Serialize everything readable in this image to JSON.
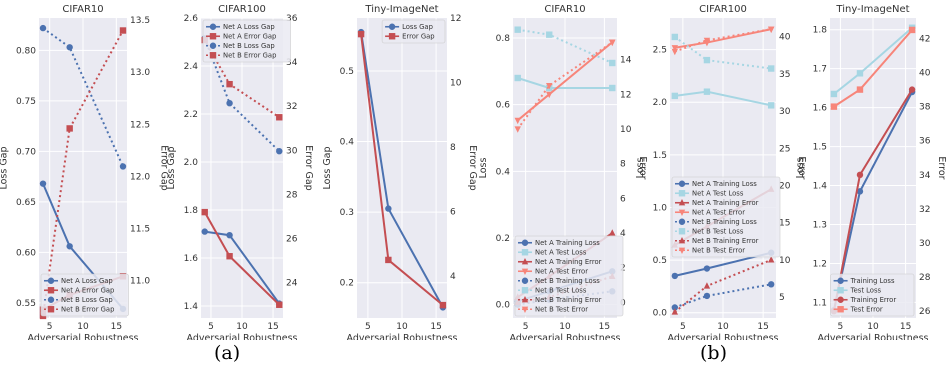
{
  "captions": {
    "a": "(a)",
    "b": "(b)"
  },
  "colors": {
    "blue": "#4c72b0",
    "red": "#c44e52",
    "lightblue": "#a6d6e3",
    "salmon": "#f7857a",
    "grid": "#ffffff",
    "panel_bg": "#eaeaf2",
    "text": "#333333"
  },
  "chart_data": [
    {
      "type": "line",
      "title": "CIFAR10",
      "xlabel": "Adversarial Robustness",
      "ylabel": "Loss Gap",
      "y2label": "Error Gap",
      "xlim": [
        3.4,
        16.6
      ],
      "ylim": [
        0.535,
        0.832
      ],
      "y2lim": [
        10.64,
        13.52
      ],
      "xticks": [
        5,
        10,
        15
      ],
      "yticks": [
        0.55,
        0.6,
        0.65,
        0.7,
        0.75,
        0.8
      ],
      "y2ticks": [
        11.0,
        11.5,
        12.0,
        12.5,
        13.0,
        13.5
      ],
      "x": [
        4,
        8,
        16
      ],
      "series": [
        {
          "name": "Net A Loss Gap",
          "axis": "left",
          "values": [
            0.668,
            0.606,
            0.544
          ],
          "color": "blue",
          "marker": "circle",
          "dash": false
        },
        {
          "name": "Net A Error Gap",
          "axis": "right",
          "values": [
            10.72,
            10.86,
            11.04
          ],
          "color": "red",
          "marker": "square",
          "dash": false
        },
        {
          "name": "Net B Loss Gap",
          "axis": "left",
          "values": [
            0.822,
            0.803,
            0.685
          ],
          "color": "blue",
          "marker": "circle",
          "dash": true
        },
        {
          "name": "Net B Error Gap",
          "axis": "right",
          "values": [
            10.66,
            12.46,
            13.4
          ],
          "color": "red",
          "marker": "square",
          "dash": true
        }
      ],
      "legend": "lower-left"
    },
    {
      "type": "line",
      "title": "CIFAR100",
      "xlabel": "Adversarial Robustness",
      "ylabel": "Loss Gap",
      "y2label": "Error Gap",
      "xlim": [
        3.4,
        16.6
      ],
      "ylim": [
        1.35,
        2.6
      ],
      "y2lim": [
        22.4,
        36.0
      ],
      "xticks": [
        5,
        10,
        15
      ],
      "yticks": [
        1.4,
        1.6,
        1.8,
        2.0,
        2.2,
        2.4,
        2.6
      ],
      "y2ticks": [
        24,
        26,
        28,
        30,
        32,
        34,
        36
      ],
      "x": [
        4,
        8,
        16
      ],
      "series": [
        {
          "name": "Net A Loss Gap",
          "axis": "left",
          "values": [
            1.71,
            1.695,
            1.41
          ],
          "color": "blue",
          "marker": "circle",
          "dash": false
        },
        {
          "name": "Net A Error Gap",
          "axis": "right",
          "values": [
            27.2,
            25.2,
            23.0
          ],
          "color": "red",
          "marker": "square",
          "dash": false
        },
        {
          "name": "Net B Loss Gap",
          "axis": "left",
          "values": [
            2.515,
            2.245,
            2.045
          ],
          "color": "blue",
          "marker": "circle",
          "dash": true
        },
        {
          "name": "Net B Error Gap",
          "axis": "right",
          "values": [
            35.0,
            33.0,
            31.5
          ],
          "color": "red",
          "marker": "square",
          "dash": true
        }
      ],
      "legend": "top-left"
    },
    {
      "type": "line",
      "title": "Tiny-ImageNet",
      "xlabel": "Adversarial Robustness",
      "ylabel": "Loss Gap",
      "y2label": "Error Gap",
      "xlim": [
        3.4,
        16.6
      ],
      "ylim": [
        0.15,
        0.575
      ],
      "y2lim": [
        2.7,
        12.0
      ],
      "xticks": [
        5,
        10,
        15
      ],
      "yticks": [
        0.2,
        0.3,
        0.4,
        0.5
      ],
      "y2ticks": [
        4,
        6,
        8,
        10,
        12
      ],
      "x": [
        4,
        8,
        16
      ],
      "series": [
        {
          "name": "Loss Gap",
          "axis": "left",
          "values": [
            0.555,
            0.305,
            0.165
          ],
          "color": "blue",
          "marker": "circle",
          "dash": false
        },
        {
          "name": "Error Gap",
          "axis": "right",
          "values": [
            11.5,
            4.5,
            3.1
          ],
          "color": "red",
          "marker": "square",
          "dash": false
        }
      ],
      "legend": "top-right"
    },
    {
      "type": "line",
      "title": "CIFAR10",
      "xlabel": "Adversarial Robustness",
      "ylabel": "Loss",
      "y2label": "Error",
      "xlim": [
        3.4,
        16.6
      ],
      "ylim": [
        -0.04,
        0.86
      ],
      "y2lim": [
        -0.9,
        16.4
      ],
      "xticks": [
        5,
        10,
        15
      ],
      "yticks": [
        0.0,
        0.2,
        0.4,
        0.6,
        0.8
      ],
      "y2ticks": [
        0,
        2,
        4,
        6,
        8,
        10,
        12,
        14
      ],
      "x": [
        4,
        8,
        16
      ],
      "series": [
        {
          "name": "Net A Training Loss",
          "axis": "left",
          "values": [
            0.01,
            0.04,
            0.1
          ],
          "color": "blue",
          "marker": "circle",
          "dash": false
        },
        {
          "name": "Net A Test Loss",
          "axis": "left",
          "values": [
            0.68,
            0.65,
            0.65
          ],
          "color": "lightblue",
          "marker": "square",
          "dash": false
        },
        {
          "name": "Net A Training Error",
          "axis": "right",
          "values": [
            0.3,
            1.5,
            4.0
          ],
          "color": "red",
          "marker": "triangle-up",
          "dash": false
        },
        {
          "name": "Net A Test Error",
          "axis": "right",
          "values": [
            10.5,
            12.0,
            15.0
          ],
          "color": "salmon",
          "marker": "triangle-down",
          "dash": false
        },
        {
          "name": "Net B Training Loss",
          "axis": "left",
          "values": [
            0.0,
            0.015,
            0.04
          ],
          "color": "blue",
          "marker": "circle",
          "dash": true
        },
        {
          "name": "Net B Test Loss",
          "axis": "left",
          "values": [
            0.825,
            0.81,
            0.725
          ],
          "color": "lightblue",
          "marker": "square",
          "dash": true
        },
        {
          "name": "Net B Training Error",
          "axis": "right",
          "values": [
            0.0,
            0.3,
            1.5
          ],
          "color": "red",
          "marker": "triangle-up",
          "dash": true
        },
        {
          "name": "Net B Test Error",
          "axis": "right",
          "values": [
            10.0,
            12.5,
            15.0
          ],
          "color": "salmon",
          "marker": "triangle-down",
          "dash": true
        }
      ],
      "legend": "lower-left"
    },
    {
      "type": "line",
      "title": "CIFAR100",
      "xlabel": "Adversarial Robustness",
      "ylabel": "Loss",
      "y2label": "Error",
      "xlim": [
        3.4,
        16.6
      ],
      "ylim": [
        -0.05,
        2.8
      ],
      "y2lim": [
        2.2,
        42.5
      ],
      "xticks": [
        5,
        10,
        15
      ],
      "yticks": [
        0.0,
        0.5,
        1.0,
        1.5,
        2.0,
        2.5
      ],
      "y2ticks": [
        5,
        10,
        15,
        20,
        25,
        30,
        35,
        40
      ],
      "x": [
        4,
        8,
        16
      ],
      "series": [
        {
          "name": "Net A Training Loss",
          "axis": "left",
          "values": [
            0.35,
            0.42,
            0.57
          ],
          "color": "blue",
          "marker": "circle",
          "dash": false
        },
        {
          "name": "Net A Test Loss",
          "axis": "left",
          "values": [
            2.06,
            2.1,
            1.97
          ],
          "color": "lightblue",
          "marker": "square",
          "dash": false
        },
        {
          "name": "Net A Training Error",
          "axis": "right",
          "values": [
            12.0,
            14.5,
            19.5
          ],
          "color": "red",
          "marker": "triangle-up",
          "dash": false
        },
        {
          "name": "Net A Test Error",
          "axis": "right",
          "values": [
            38.5,
            39.2,
            41.0
          ],
          "color": "salmon",
          "marker": "triangle-down",
          "dash": false
        },
        {
          "name": "Net B Training Loss",
          "axis": "left",
          "values": [
            0.05,
            0.16,
            0.27
          ],
          "color": "blue",
          "marker": "circle",
          "dash": true
        },
        {
          "name": "Net B Test Loss",
          "axis": "left",
          "values": [
            2.62,
            2.4,
            2.32
          ],
          "color": "lightblue",
          "marker": "square",
          "dash": true
        },
        {
          "name": "Net B Training Error",
          "axis": "right",
          "values": [
            3.0,
            6.5,
            10.0
          ],
          "color": "red",
          "marker": "triangle-up",
          "dash": true
        },
        {
          "name": "Net B Test Error",
          "axis": "right",
          "values": [
            38.0,
            39.5,
            41.0
          ],
          "color": "salmon",
          "marker": "triangle-down",
          "dash": true
        }
      ],
      "legend": "center-left"
    },
    {
      "type": "line",
      "title": "Tiny-ImageNet",
      "xlabel": "Adversarial Robustness",
      "ylabel": "Loss",
      "y2label": "Error",
      "xlim": [
        3.4,
        16.6
      ],
      "ylim": [
        1.06,
        1.83
      ],
      "y2lim": [
        25.6,
        43.2
      ],
      "xticks": [
        5,
        10,
        15
      ],
      "yticks": [
        1.1,
        1.2,
        1.3,
        1.4,
        1.5,
        1.6,
        1.7,
        1.8
      ],
      "y2ticks": [
        26,
        28,
        30,
        32,
        34,
        36,
        38,
        40,
        42
      ],
      "x": [
        4,
        8,
        16
      ],
      "series": [
        {
          "name": "Training Loss",
          "axis": "left",
          "values": [
            1.08,
            1.385,
            1.64
          ],
          "color": "blue",
          "marker": "circle",
          "dash": false
        },
        {
          "name": "Test Loss",
          "axis": "left",
          "values": [
            1.635,
            1.688,
            1.805
          ],
          "color": "lightblue",
          "marker": "square",
          "dash": false
        },
        {
          "name": "Training Error",
          "axis": "right",
          "values": [
            26.0,
            34.0,
            39.0
          ],
          "color": "red",
          "marker": "circle",
          "dash": false
        },
        {
          "name": "Test Error",
          "axis": "right",
          "values": [
            38.0,
            39.0,
            42.5
          ],
          "color": "salmon",
          "marker": "square",
          "dash": false
        }
      ],
      "legend": "lower-right"
    }
  ]
}
